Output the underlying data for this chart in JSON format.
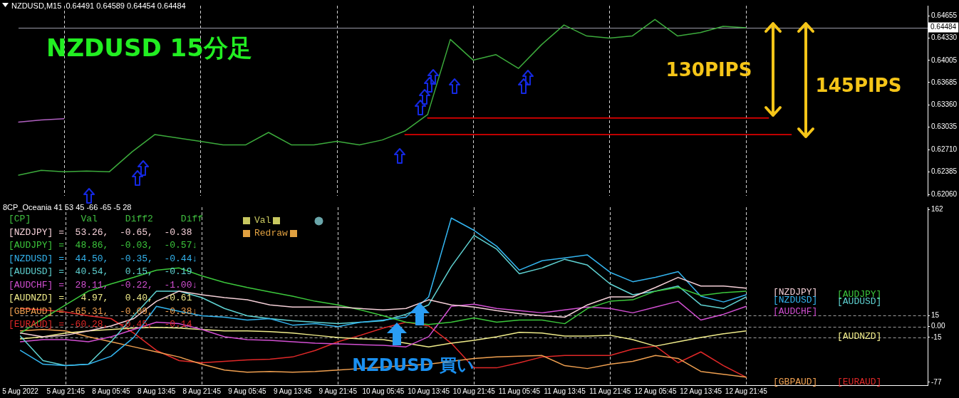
{
  "chart_data": [
    {
      "type": "line",
      "title": "NZDUSD,M15  0.64491 0.64589 0.64454 0.64484",
      "tick_labels": "y",
      "categories": [
        "5 Aug 2022",
        null,
        "5 Aug 21:45",
        null,
        "8 Aug 05:45",
        null,
        "8 Aug 13:45",
        null,
        "8 Aug 21:45",
        null,
        "9 Aug 05:45",
        null,
        "9 Aug 13:45",
        null,
        "9 Aug 21:45",
        null,
        "10 Aug 05:45",
        null,
        "10 Aug 13:45",
        null,
        "10 Aug 21:45",
        null,
        "11 Aug 05:45",
        null,
        "11 Aug 13:45",
        null,
        "11 Aug 21:45",
        null,
        "12 Aug 05:45",
        null,
        "12 Aug 13:45",
        null,
        "12 Aug 21:45",
        null,
        null,
        null,
        null,
        null,
        null,
        null,
        null
      ],
      "series": [
        {
          "color": "#3cab3c",
          "values": [
            0.6234,
            0.6241,
            0.6239,
            0.624,
            0.6239,
            0.6268,
            0.6293,
            0.6288,
            0.6283,
            0.6278,
            0.6278,
            0.6296,
            0.6278,
            0.6278,
            0.6283,
            0.6278,
            0.6285,
            0.6298,
            0.6322,
            0.6431,
            0.6401,
            0.6409,
            0.6389,
            0.6423,
            0.6452,
            0.6436,
            0.6433,
            0.6436,
            0.646,
            0.6436,
            0.6441,
            0.645,
            0.6448,
            null,
            null,
            null,
            null,
            null,
            null,
            null,
            null
          ]
        },
        {
          "color": "#b060c0",
          "values": [
            0.6311,
            0.6314,
            0.6316,
            null,
            null,
            null,
            null,
            null,
            null,
            null,
            null,
            null,
            null,
            null,
            null,
            null,
            null,
            null,
            null,
            null,
            null,
            null,
            null,
            null,
            null,
            null,
            null,
            null,
            null,
            null,
            null,
            null,
            null,
            null,
            null,
            null,
            null,
            null,
            null,
            null,
            null
          ]
        },
        {
          "color": "#ff0000",
          "values": [
            null,
            null,
            null,
            null,
            null,
            null,
            null,
            null,
            null,
            null,
            null,
            null,
            null,
            null,
            null,
            null,
            null,
            null,
            0.6317,
            0.6317,
            0.6317,
            0.6317,
            0.6317,
            0.6317,
            0.6317,
            0.6317,
            0.6317,
            0.6317,
            0.6317,
            0.6317,
            0.6317,
            0.6317,
            0.6317,
            0.6317,
            null,
            null,
            null,
            null,
            null,
            null,
            null
          ]
        },
        {
          "color": "#ff0000",
          "values": [
            null,
            null,
            null,
            null,
            null,
            null,
            null,
            null,
            null,
            null,
            null,
            null,
            null,
            null,
            null,
            null,
            null,
            0.6293,
            0.6293,
            0.6293,
            0.6293,
            0.6293,
            0.6293,
            0.6293,
            0.6293,
            0.6293,
            0.6293,
            0.6293,
            0.6293,
            0.6293,
            0.6293,
            0.6293,
            0.6293,
            0.6293,
            0.6293,
            null,
            null,
            null,
            null,
            null,
            null
          ]
        }
      ],
      "ylim": [
        0.6204,
        0.648
      ],
      "yticks": [
        0.64655,
        {
          "value": 0.6433,
          "label": "0.64330"
        },
        0.64005,
        0.63685,
        {
          "value": 0.6336,
          "label": "0.63360"
        },
        0.63035,
        {
          "value": 0.6271,
          "label": "0.62710"
        },
        0.62385,
        {
          "value": 0.6206,
          "label": "0.62060"
        }
      ],
      "ref_lines": [
        {
          "axis": "x",
          "value": "5 Aug 21:45",
          "color": "#d0d0d0",
          "line_style": "dashed"
        },
        {
          "axis": "x",
          "value": "8 Aug 21:45",
          "color": "#d0d0d0",
          "line_style": "dashed"
        },
        {
          "axis": "x",
          "value": "9 Aug 21:45",
          "color": "#d0d0d0",
          "line_style": "dashed"
        },
        {
          "axis": "x",
          "value": "10 Aug 21:45",
          "color": "#d0d0d0",
          "line_style": "dashed"
        },
        {
          "axis": "x",
          "value": "11 Aug 21:45",
          "color": "#d0d0d0",
          "line_style": "dashed"
        },
        {
          "axis": "x",
          "value": "12 Aug 21:45",
          "color": "#d0d0d0",
          "line_style": "dashed"
        },
        {
          "axis": "y",
          "value": 0.64484,
          "label": "0.64484",
          "color": "#9a9aa8",
          "line_style": "solid"
        }
      ],
      "annotations": [
        "NZDUSD 15分足",
        "130PIPS",
        "145PIPS"
      ]
    },
    {
      "type": "line",
      "title": "8CP_Oceania 41 53 45 -66 -65 -5 28",
      "categories": [
        "5 Aug 2022",
        null,
        "5 Aug 21:45",
        null,
        "8 Aug 05:45",
        null,
        "8 Aug 13:45",
        null,
        "8 Aug 21:45",
        null,
        "9 Aug 05:45",
        null,
        "9 Aug 13:45",
        null,
        "9 Aug 21:45",
        null,
        "10 Aug 05:45",
        null,
        "10 Aug 13:45",
        null,
        "10 Aug 21:45",
        null,
        "11 Aug 05:45",
        null,
        "11 Aug 13:45",
        null,
        "11 Aug 21:45",
        null,
        "12 Aug 05:45",
        null,
        "12 Aug 13:45",
        null,
        "12 Aug 21:45",
        null,
        null,
        null,
        null,
        null,
        null,
        null,
        null
      ],
      "series": [
        {
          "name": "[NZDJPY]",
          "color": "#f5d0d8",
          "values": [
            -9,
            -14,
            -12,
            -6,
            1,
            11,
            35,
            49,
            44,
            40,
            37,
            30,
            27,
            27,
            27,
            25,
            23,
            25,
            37,
            30,
            27,
            22,
            18,
            15,
            13,
            30,
            41,
            41,
            54,
            68,
            56,
            56,
            53,
            null,
            null,
            null,
            null,
            null,
            null,
            null,
            null
          ]
        },
        {
          "name": "[AUDJPY]",
          "color": "#3cc83c",
          "values": [
            -9,
            11,
            30,
            49,
            59,
            68,
            78,
            81,
            70,
            61,
            54,
            48,
            42,
            35,
            30,
            23,
            15,
            6,
            3,
            6,
            12,
            6,
            9,
            9,
            4,
            25,
            35,
            37,
            49,
            54,
            43,
            47,
            49,
            null,
            null,
            null,
            null,
            null,
            null,
            null,
            null
          ]
        },
        {
          "name": "[NZDUSD]",
          "color": "#33b5f0",
          "values": [
            -33,
            -52,
            -54,
            -52,
            -41,
            -15,
            28,
            21,
            15,
            13,
            9,
            11,
            2,
            4,
            0,
            6,
            9,
            13,
            41,
            150,
            133,
            111,
            78,
            91,
            95,
            99,
            75,
            62,
            68,
            76,
            42,
            34,
            44,
            null,
            null,
            null,
            null,
            null,
            null,
            null,
            null
          ]
        },
        {
          "name": "[AUDUSD]",
          "color": "#5fd3d3",
          "values": [
            -13,
            -47,
            -54,
            -52,
            -21,
            15,
            49,
            49,
            40,
            25,
            15,
            11,
            8,
            6,
            4,
            6,
            8,
            17,
            30,
            83,
            126,
            107,
            73,
            81,
            93,
            85,
            59,
            44,
            49,
            56,
            30,
            25,
            41,
            null,
            null,
            null,
            null,
            null,
            null,
            null,
            null
          ]
        },
        {
          "name": "[AUDCHF]",
          "color": "#d24fd2",
          "values": [
            -21,
            -18,
            -18,
            -21,
            -14,
            -4,
            6,
            4,
            -4,
            -14,
            -18,
            -19,
            -21,
            -23,
            -24,
            -25,
            -26,
            -28,
            -14,
            28,
            31,
            25,
            22,
            19,
            23,
            27,
            25,
            19,
            27,
            35,
            9,
            17,
            28,
            null,
            null,
            null,
            null,
            null,
            null,
            null,
            null
          ]
        },
        {
          "name": "[AUDNZD]",
          "color": "#f0ec8a",
          "values": [
            -17,
            -14,
            -9,
            -6,
            -4,
            -2,
            -1,
            -2,
            -4,
            -6,
            -6,
            -7,
            -9,
            -12,
            -15,
            -17,
            -18,
            -23,
            -28,
            -23,
            -19,
            -14,
            -8,
            -9,
            -13,
            -13,
            -12,
            -18,
            -27,
            -21,
            -15,
            -10,
            -6,
            null,
            null,
            null,
            null,
            null,
            null,
            null,
            null
          ]
        },
        {
          "name": "[GBPAUD]",
          "color": "#f0a050",
          "values": [
            -6,
            -4,
            -6,
            -14,
            -21,
            -28,
            -35,
            -42,
            -52,
            -60,
            -63,
            -62,
            -63,
            -62,
            -60,
            -58,
            -56,
            -54,
            -52,
            -48,
            -44,
            -42,
            -41,
            -40,
            -54,
            -58,
            -52,
            -48,
            -40,
            -44,
            -62,
            -66,
            -70,
            null,
            null,
            null,
            null,
            null,
            null,
            null,
            null
          ]
        },
        {
          "name": "[EURAUD]",
          "color": "#e02828",
          "values": [
            25,
            23,
            20,
            15,
            11,
            -9,
            -33,
            -47,
            -50,
            -48,
            -46,
            -45,
            -42,
            -33,
            -21,
            -12,
            -2,
            6,
            1,
            -23,
            -57,
            -57,
            -50,
            -42,
            -40,
            -40,
            -40,
            -31,
            -27,
            -50,
            -35,
            -54,
            -70,
            null,
            null,
            null,
            null,
            null,
            null,
            null,
            null
          ]
        }
      ],
      "ylim": [
        -81,
        165
      ],
      "yticks": [
        162,
        15,
        {
          "value": 0,
          "label": "0.00"
        },
        -15,
        -77
      ],
      "ref_lines": [
        {
          "axis": "x",
          "value": "5 Aug 21:45",
          "color": "#d0d0d0",
          "line_style": "dashed"
        },
        {
          "axis": "x",
          "value": "8 Aug 21:45",
          "color": "#d0d0d0",
          "line_style": "dashed"
        },
        {
          "axis": "x",
          "value": "9 Aug 21:45",
          "color": "#d0d0d0",
          "line_style": "dashed"
        },
        {
          "axis": "x",
          "value": "10 Aug 21:45",
          "color": "#d0d0d0",
          "line_style": "dashed"
        },
        {
          "axis": "x",
          "value": "11 Aug 21:45",
          "color": "#d0d0d0",
          "line_style": "dashed"
        },
        {
          "axis": "x",
          "value": "12 Aug 21:45",
          "color": "#d0d0d0",
          "line_style": "dashed"
        },
        {
          "axis": "y",
          "value": 15,
          "color": "#a0a0a0",
          "line_style": "dashed"
        },
        {
          "axis": "y",
          "value": 0,
          "color": "#a0a0a0",
          "line_style": "dashed"
        },
        {
          "axis": "y",
          "value": -15,
          "color": "#a0a0a0",
          "line_style": "dashed"
        }
      ],
      "annotations": [
        "[CP]         Val     Diff2     Diff",
        "[NZDJPY] =  53.26,  -0.65,  -0.38",
        "[AUDJPY] =  48.86,  -0.03,  -0.57↓",
        "[NZDUSD] =  44.50,  -0.35,  -0.44↓",
        "[AUDUSD] =  40.54,   0.15,  -0.19",
        "[AUDCHF] =  28.11,  -0.22,  -1.00↓",
        "[AUDNZD] =   4.97,   0.40,  -0.61",
        "[GBPAUD] = -65.31,  -0.09,  -0.38↓",
        "[EURAUD] = -60.28,  -0.45,  -0.14",
        "Val",
        "Redraw",
        "NZDUSD 買い"
      ]
    }
  ]
}
